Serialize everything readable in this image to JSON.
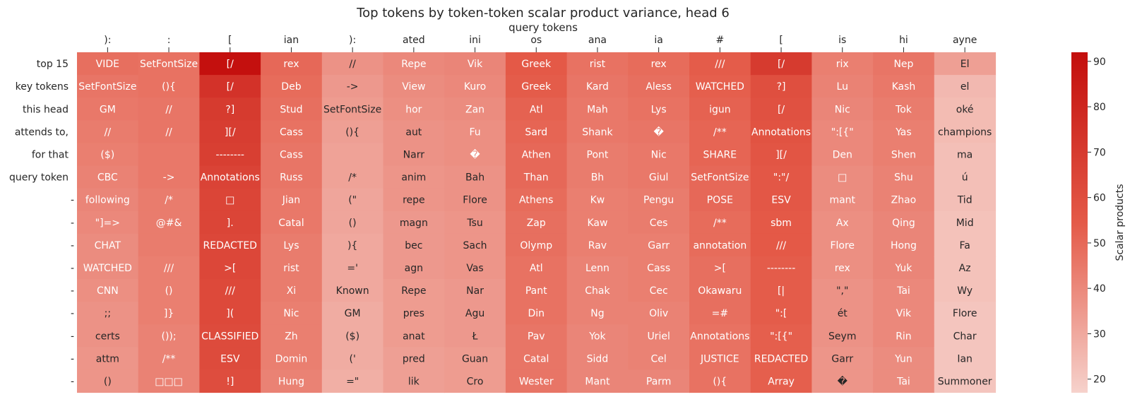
{
  "chart_data": {
    "type": "heatmap",
    "title": "Top tokens by token-token scalar product variance, head 6",
    "xlabel": "query tokens",
    "ylabel_lines": [
      "top 15",
      "key tokens",
      "this head",
      "attends to,",
      "for that",
      "query token"
    ],
    "colorbar_label": "Scalar products",
    "colorbar_ticks": [
      20,
      30,
      40,
      50,
      60,
      70,
      80,
      90
    ],
    "value_range": [
      17,
      92
    ],
    "colors": {
      "low": "#f6d2cc",
      "mid": "#e45a48",
      "high": "#c30e0c"
    },
    "columns": [
      {
        "query": "):",
        "tokens": [
          "VIDE",
          "SetFontSize",
          "GM",
          "//",
          "($)",
          "CBC",
          "following",
          "\"]=>",
          "CHAT",
          "WATCHED",
          "CNN",
          ";;",
          "certs",
          "attm",
          "()"
        ],
        "values": [
          48,
          46,
          45,
          44,
          43,
          42,
          41,
          40,
          39,
          39,
          38,
          37,
          37,
          36,
          36
        ]
      },
      {
        "query": ":",
        "tokens": [
          "SetFontSize",
          "(){",
          "//",
          "//",
          "",
          "->",
          "/*",
          "@#&",
          "",
          "///",
          "()",
          "]}",
          "());",
          "/**",
          "□□□"
        ],
        "values": [
          47,
          47,
          46,
          46,
          45,
          45,
          44,
          44,
          44,
          43,
          43,
          43,
          42,
          42,
          42
        ]
      },
      {
        "query": "[",
        "tokens": [
          "[/",
          "[/",
          "?]",
          "][/",
          "--------",
          "Annotations",
          "□",
          "].",
          "REDACTED",
          ">[",
          "///",
          "](",
          "CLASSIFIED",
          "ESV",
          "!]"
        ],
        "values": [
          91,
          74,
          70,
          69,
          68,
          66,
          65,
          65,
          64,
          64,
          63,
          63,
          62,
          62,
          61
        ]
      },
      {
        "query": "ian",
        "tokens": [
          "rex",
          "Deb",
          "Stud",
          "Cass",
          "Cass",
          "Russ",
          "Jian",
          "Catal",
          "Lys",
          "rist",
          "Xi",
          "Nic",
          "Zh",
          "Domin",
          "Hung"
        ],
        "values": [
          50,
          49,
          48,
          47,
          46,
          46,
          45,
          45,
          44,
          44,
          44,
          43,
          43,
          43,
          42
        ]
      },
      {
        "query": "):",
        "tokens": [
          "//",
          "->",
          "SetFontSize",
          "(){",
          "",
          "/*",
          "(\"",
          "()",
          "){",
          "='",
          "Known",
          "GM",
          "($)",
          "('",
          "=\""
        ],
        "values": [
          37,
          35,
          34,
          33,
          32,
          32,
          31,
          31,
          30,
          30,
          30,
          29,
          29,
          29,
          28
        ]
      },
      {
        "query": "ated",
        "tokens": [
          "Repe",
          "View",
          "hor",
          "aut",
          "Narr",
          "anim",
          "repe",
          "magn",
          "bec",
          "agn",
          "Repe",
          "pres",
          "anat",
          "pred",
          "lik"
        ],
        "values": [
          40,
          39,
          38,
          37,
          37,
          36,
          36,
          35,
          35,
          35,
          34,
          34,
          34,
          33,
          33
        ]
      },
      {
        "query": "ini",
        "tokens": [
          "Vik",
          "Kuro",
          "Zan",
          "Fu",
          "�",
          "Bah",
          "Flore",
          "Tsu",
          "Sach",
          "Vas",
          "Nar",
          "Agu",
          "Ł",
          "Guan",
          "Cro"
        ],
        "values": [
          41,
          40,
          39,
          38,
          38,
          37,
          37,
          36,
          36,
          36,
          35,
          35,
          35,
          34,
          34
        ]
      },
      {
        "query": "os",
        "tokens": [
          "Greek",
          "Greek",
          "Atl",
          "Sard",
          "Athen",
          "Than",
          "Athens",
          "Zap",
          "Olymp",
          "Atl",
          "Pant",
          "Din",
          "Pav",
          "Catal",
          "Wester"
        ],
        "values": [
          55,
          54,
          52,
          51,
          50,
          50,
          49,
          48,
          48,
          47,
          47,
          47,
          46,
          46,
          46
        ]
      },
      {
        "query": "ana",
        "tokens": [
          "rist",
          "Kard",
          "Mah",
          "Shank",
          "Pont",
          "Bh",
          "Kw",
          "Kaw",
          "Rav",
          "Lenn",
          "Chak",
          "Ng",
          "Yok",
          "Sidd",
          "Mant"
        ],
        "values": [
          47,
          46,
          45,
          45,
          44,
          44,
          43,
          43,
          43,
          42,
          42,
          42,
          41,
          41,
          41
        ]
      },
      {
        "query": "ia",
        "tokens": [
          "rex",
          "Aless",
          "Lys",
          "�",
          "Nic",
          "Giul",
          "Pengu",
          "Ces",
          "Garr",
          "Cass",
          "Cec",
          "Oliv",
          "Uriel",
          "Cel",
          "Parm"
        ],
        "values": [
          49,
          48,
          47,
          46,
          45,
          45,
          44,
          44,
          43,
          43,
          43,
          42,
          42,
          42,
          41
        ]
      },
      {
        "query": "#",
        "tokens": [
          "///",
          "WATCHED",
          "igun",
          "/**",
          "SHARE",
          "SetFontSize",
          "POSE",
          "/**",
          "annotation",
          ">[",
          "Okawaru",
          "=#",
          "Annotations",
          "JUSTICE",
          "(){"
        ],
        "values": [
          54,
          53,
          52,
          51,
          51,
          50,
          50,
          49,
          49,
          48,
          48,
          48,
          47,
          47,
          47
        ]
      },
      {
        "query": "[",
        "tokens": [
          "[/",
          "?]",
          "[/",
          "Annotations",
          "][/",
          "\":\"/",
          "ESV",
          "sbm",
          "///",
          "--------",
          "[|",
          "\":[",
          "\":[{\"",
          "REDACTED",
          "Array"
        ],
        "values": [
          70,
          60,
          59,
          58,
          57,
          56,
          56,
          55,
          55,
          54,
          54,
          54,
          53,
          53,
          53
        ]
      },
      {
        "query": "is",
        "tokens": [
          "rix",
          "Lu",
          "Nic",
          "\":[{\"",
          "Den",
          "□",
          "mant",
          "Ax",
          "Flore",
          "rex",
          "\",\"",
          "ét",
          "Seym",
          "Garr",
          "�"
        ],
        "values": [
          43,
          42,
          41,
          40,
          40,
          39,
          39,
          38,
          38,
          38,
          37,
          37,
          37,
          36,
          36
        ]
      },
      {
        "query": "hi",
        "tokens": [
          "Nep",
          "Kash",
          "Tok",
          "Yas",
          "Shen",
          "Shu",
          "Zhao",
          "Qing",
          "Hong",
          "Yuk",
          "Tai",
          "Vik",
          "Rin",
          "Yun",
          "Tai"
        ],
        "values": [
          46,
          45,
          44,
          43,
          43,
          42,
          42,
          41,
          41,
          41,
          40,
          40,
          40,
          39,
          39
        ]
      },
      {
        "query": "ayne",
        "tokens": [
          "El",
          "el",
          "oké",
          "champions",
          "ma",
          "ú",
          "Tid",
          "Mid",
          "Fa",
          "Az",
          "Wy",
          "Flore",
          "Char",
          "Ian",
          "Summoner"
        ],
        "values": [
          33,
          25,
          24,
          24,
          23,
          23,
          23,
          22,
          22,
          22,
          22,
          21,
          21,
          21,
          21
        ]
      }
    ]
  }
}
